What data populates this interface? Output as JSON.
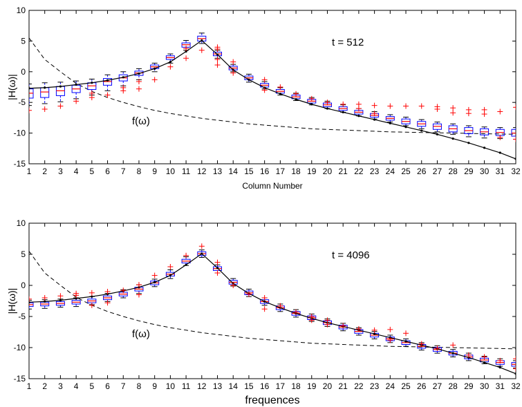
{
  "chart_data": [
    {
      "type": "box",
      "ylabel": "|H(ω)|",
      "xlabel": "Column Number",
      "annotation_t": "t = 512",
      "annotation_f": "f(ω)",
      "xlim": [
        1,
        32
      ],
      "ylim": [
        -15,
        10
      ],
      "yticks": [
        -15,
        -10,
        -5,
        0,
        5,
        10
      ],
      "x": [
        1,
        2,
        3,
        4,
        5,
        6,
        7,
        8,
        9,
        10,
        11,
        12,
        13,
        14,
        15,
        16,
        17,
        18,
        19,
        20,
        21,
        22,
        23,
        24,
        25,
        26,
        27,
        28,
        29,
        30,
        31,
        32
      ],
      "true_curve": [
        -2.7,
        -2.6,
        -2.4,
        -2.1,
        -1.8,
        -1.4,
        -0.9,
        -0.3,
        0.5,
        1.6,
        3.3,
        5.1,
        2.8,
        0.3,
        -1.3,
        -2.6,
        -3.6,
        -4.5,
        -5.3,
        -6.0,
        -6.6,
        -7.2,
        -7.8,
        -8.4,
        -9.0,
        -9.6,
        -10.2,
        -10.9,
        -11.6,
        -12.4,
        -13.2,
        -14.2
      ],
      "dashed_curve": [
        5.5,
        2.0,
        0.0,
        -1.9,
        -3.2,
        -4.2,
        -5.0,
        -5.7,
        -6.3,
        -6.8,
        -7.2,
        -7.6,
        -7.9,
        -8.2,
        -8.5,
        -8.7,
        -8.9,
        -9.1,
        -9.3,
        -9.4,
        -9.5,
        -9.6,
        -9.7,
        -9.8,
        -9.85,
        -9.9,
        -9.95,
        -10.0,
        -10.05,
        -10.1,
        -10.15,
        -10.2
      ],
      "box_median": [
        -3.5,
        -3.3,
        -3.1,
        -2.8,
        -2.3,
        -1.6,
        -1.0,
        -0.2,
        0.8,
        2.3,
        4.4,
        5.4,
        2.9,
        0.6,
        -1.0,
        -2.2,
        -3.2,
        -4.1,
        -4.8,
        -5.4,
        -6.0,
        -6.6,
        -7.1,
        -7.6,
        -8.1,
        -8.5,
        -8.9,
        -9.3,
        -9.6,
        -9.8,
        -9.9,
        -10.0
      ],
      "box_q1": [
        -4.3,
        -4.2,
        -3.9,
        -3.4,
        -2.9,
        -2.2,
        -1.5,
        -0.6,
        0.5,
        2.0,
        4.0,
        5.0,
        2.6,
        0.3,
        -1.3,
        -2.5,
        -3.5,
        -4.4,
        -5.1,
        -5.7,
        -6.3,
        -6.9,
        -7.4,
        -7.9,
        -8.5,
        -8.9,
        -9.4,
        -9.8,
        -10.1,
        -10.3,
        -10.4,
        -10.5
      ],
      "box_q3": [
        -2.8,
        -2.6,
        -2.4,
        -2.2,
        -1.8,
        -1.1,
        -0.5,
        0.1,
        1.1,
        2.6,
        4.7,
        5.8,
        3.2,
        0.9,
        -0.7,
        -1.9,
        -2.9,
        -3.8,
        -4.5,
        -5.1,
        -5.7,
        -6.3,
        -6.8,
        -7.3,
        -7.7,
        -8.1,
        -8.5,
        -8.8,
        -9.1,
        -9.3,
        -9.4,
        -9.4
      ],
      "whisker_low": [
        -5.5,
        -5.2,
        -4.9,
        -4.4,
        -3.8,
        -3.1,
        -2.3,
        -1.3,
        0.0,
        1.4,
        3.5,
        4.6,
        2.2,
        0.0,
        -1.7,
        -2.8,
        -3.8,
        -4.7,
        -5.4,
        -6.0,
        -6.6,
        -7.2,
        -7.7,
        -8.2,
        -8.8,
        -9.3,
        -9.8,
        -10.2,
        -10.6,
        -10.8,
        -10.9,
        -11.0
      ],
      "whisker_high": [
        -2.0,
        -1.8,
        -1.7,
        -1.5,
        -1.2,
        -0.5,
        0.0,
        0.5,
        1.4,
        2.9,
        5.1,
        6.3,
        3.5,
        1.2,
        -0.4,
        -1.6,
        -2.6,
        -3.5,
        -4.2,
        -4.8,
        -5.4,
        -6.0,
        -6.5,
        -7.0,
        -7.4,
        -7.8,
        -8.2,
        -8.5,
        -8.8,
        -9.0,
        -9.1,
        -9.1
      ],
      "outliers": [
        [
          1,
          -6.3
        ],
        [
          2,
          -6.1
        ],
        [
          3,
          -5.6
        ],
        [
          4,
          -4.8
        ],
        [
          5,
          -4.2
        ],
        [
          5,
          -3.5
        ],
        [
          6,
          -3.8
        ],
        [
          7,
          -3.1
        ],
        [
          7,
          -2.6
        ],
        [
          8,
          -2.8
        ],
        [
          8,
          -1.6
        ],
        [
          9,
          -1.3
        ],
        [
          10,
          0.8
        ],
        [
          11,
          2.2
        ],
        [
          11,
          3.8
        ],
        [
          12,
          3.5
        ],
        [
          13,
          1.1
        ],
        [
          13,
          2.0
        ],
        [
          13,
          3.7
        ],
        [
          13,
          4.0
        ],
        [
          14,
          -0.2
        ],
        [
          14,
          1.6
        ],
        [
          16,
          -1.3
        ],
        [
          16,
          -3.0
        ],
        [
          17,
          -2.5
        ],
        [
          18,
          -3.6
        ],
        [
          19,
          -4.4
        ],
        [
          20,
          -5.0
        ],
        [
          21,
          -5.3
        ],
        [
          22,
          -5.3
        ],
        [
          22,
          -6.0
        ],
        [
          23,
          -5.5
        ],
        [
          23,
          -6.8
        ],
        [
          24,
          -5.6
        ],
        [
          25,
          -5.6
        ],
        [
          26,
          -5.6
        ],
        [
          27,
          -5.7
        ],
        [
          27,
          -6.1
        ],
        [
          28,
          -5.9
        ],
        [
          28,
          -6.7
        ],
        [
          29,
          -6.2
        ],
        [
          29,
          -6.8
        ],
        [
          30,
          -6.2
        ],
        [
          30,
          -6.9
        ],
        [
          31,
          -6.5
        ],
        [
          31,
          -10.7
        ],
        [
          32,
          -5.8
        ],
        [
          32,
          -11.0
        ]
      ]
    },
    {
      "type": "box",
      "ylabel": "|H(ω)|",
      "xlabel": "frequences",
      "annotation_t": "t = 4096",
      "annotation_f": "f(ω)",
      "xlim": [
        1,
        32
      ],
      "ylim": [
        -15,
        10
      ],
      "yticks": [
        -15,
        -10,
        -5,
        0,
        5,
        10
      ],
      "x": [
        1,
        2,
        3,
        4,
        5,
        6,
        7,
        8,
        9,
        10,
        11,
        12,
        13,
        14,
        15,
        16,
        17,
        18,
        19,
        20,
        21,
        22,
        23,
        24,
        25,
        26,
        27,
        28,
        29,
        30,
        31,
        32
      ],
      "true_curve": [
        -2.7,
        -2.6,
        -2.4,
        -2.1,
        -1.8,
        -1.4,
        -0.9,
        -0.3,
        0.5,
        1.6,
        3.3,
        5.1,
        2.8,
        0.3,
        -1.3,
        -2.6,
        -3.6,
        -4.5,
        -5.3,
        -6.0,
        -6.6,
        -7.2,
        -7.8,
        -8.4,
        -9.0,
        -9.6,
        -10.2,
        -10.9,
        -11.6,
        -12.4,
        -13.2,
        -14.2
      ],
      "dashed_curve": [
        5.5,
        2.0,
        0.0,
        -1.9,
        -3.2,
        -4.2,
        -5.0,
        -5.7,
        -6.3,
        -6.8,
        -7.2,
        -7.6,
        -7.9,
        -8.2,
        -8.5,
        -8.7,
        -8.9,
        -9.1,
        -9.3,
        -9.4,
        -9.5,
        -9.6,
        -9.7,
        -9.8,
        -9.85,
        -9.9,
        -9.95,
        -10.0,
        -10.05,
        -10.1,
        -10.15,
        -10.2
      ],
      "box_median": [
        -3.1,
        -3.0,
        -2.9,
        -2.7,
        -2.5,
        -2.0,
        -1.4,
        -0.6,
        0.4,
        1.8,
        3.9,
        5.1,
        2.7,
        0.5,
        -1.2,
        -2.6,
        -3.6,
        -4.5,
        -5.2,
        -6.0,
        -6.7,
        -7.4,
        -8.0,
        -8.6,
        -9.2,
        -9.8,
        -10.3,
        -10.9,
        -11.5,
        -12.0,
        -12.4,
        -12.7
      ],
      "box_q1": [
        -3.4,
        -3.3,
        -3.2,
        -3.0,
        -2.8,
        -2.3,
        -1.7,
        -0.9,
        0.1,
        1.5,
        3.6,
        4.8,
        2.4,
        0.2,
        -1.5,
        -2.9,
        -3.9,
        -4.8,
        -5.5,
        -6.3,
        -7.0,
        -7.7,
        -8.3,
        -8.9,
        -9.5,
        -10.1,
        -10.6,
        -11.2,
        -11.8,
        -12.3,
        -12.7,
        -13.0
      ],
      "box_q3": [
        -2.8,
        -2.7,
        -2.6,
        -2.4,
        -2.2,
        -1.7,
        -1.1,
        -0.3,
        0.7,
        2.1,
        4.2,
        5.4,
        3.0,
        0.8,
        -0.9,
        -2.3,
        -3.3,
        -4.2,
        -4.9,
        -5.7,
        -6.4,
        -7.1,
        -7.7,
        -8.3,
        -8.9,
        -9.5,
        -10.0,
        -10.6,
        -11.2,
        -11.7,
        -12.1,
        -12.4
      ],
      "whisker_low": [
        -3.8,
        -3.7,
        -3.5,
        -3.4,
        -3.1,
        -2.6,
        -2.0,
        -1.3,
        -0.2,
        1.1,
        3.2,
        4.5,
        2.0,
        -0.1,
        -1.8,
        -3.2,
        -4.2,
        -5.1,
        -5.8,
        -6.6,
        -7.3,
        -8.0,
        -8.6,
        -9.2,
        -9.8,
        -10.4,
        -10.9,
        -11.5,
        -12.1,
        -12.6,
        -13.0,
        -13.3
      ],
      "whisker_high": [
        -2.4,
        -2.3,
        -2.2,
        -2.0,
        -1.8,
        -1.3,
        -0.7,
        0.1,
        1.0,
        2.5,
        4.6,
        5.7,
        3.3,
        1.1,
        -0.6,
        -2.0,
        -3.0,
        -3.9,
        -4.6,
        -5.4,
        -6.1,
        -6.8,
        -7.4,
        -8.0,
        -8.6,
        -9.2,
        -9.7,
        -10.3,
        -10.9,
        -11.4,
        -11.8,
        -12.1
      ],
      "outliers": [
        [
          1,
          -2.2
        ],
        [
          2,
          -2.0
        ],
        [
          3,
          -1.7
        ],
        [
          4,
          -1.3
        ],
        [
          4,
          -1.6
        ],
        [
          5,
          -1.2
        ],
        [
          5,
          -3.2
        ],
        [
          6,
          -1.0
        ],
        [
          6,
          -2.8
        ],
        [
          7,
          -0.8
        ],
        [
          8,
          0.1
        ],
        [
          8,
          -1.5
        ],
        [
          9,
          1.6
        ],
        [
          10,
          3.0
        ],
        [
          11,
          4.8
        ],
        [
          12,
          6.3
        ],
        [
          13,
          3.7
        ],
        [
          13,
          2.0
        ],
        [
          14,
          0.0
        ],
        [
          15,
          -1.4
        ],
        [
          16,
          -2.0
        ],
        [
          16,
          -3.8
        ],
        [
          17,
          -3.3
        ],
        [
          18,
          -4.3
        ],
        [
          19,
          -5.0
        ],
        [
          19,
          -5.6
        ],
        [
          20,
          -5.6
        ],
        [
          20,
          -6.3
        ],
        [
          21,
          -6.5
        ],
        [
          22,
          -7.0
        ],
        [
          23,
          -7.2
        ],
        [
          24,
          -7.1
        ],
        [
          24,
          -8.8
        ],
        [
          25,
          -7.7
        ],
        [
          26,
          -9.4
        ],
        [
          27,
          -10.1
        ],
        [
          28,
          -9.6
        ],
        [
          29,
          -11.2
        ],
        [
          30,
          -11.5
        ],
        [
          31,
          -12.1
        ],
        [
          32,
          -11.8
        ],
        [
          32,
          -13.4
        ]
      ]
    }
  ]
}
